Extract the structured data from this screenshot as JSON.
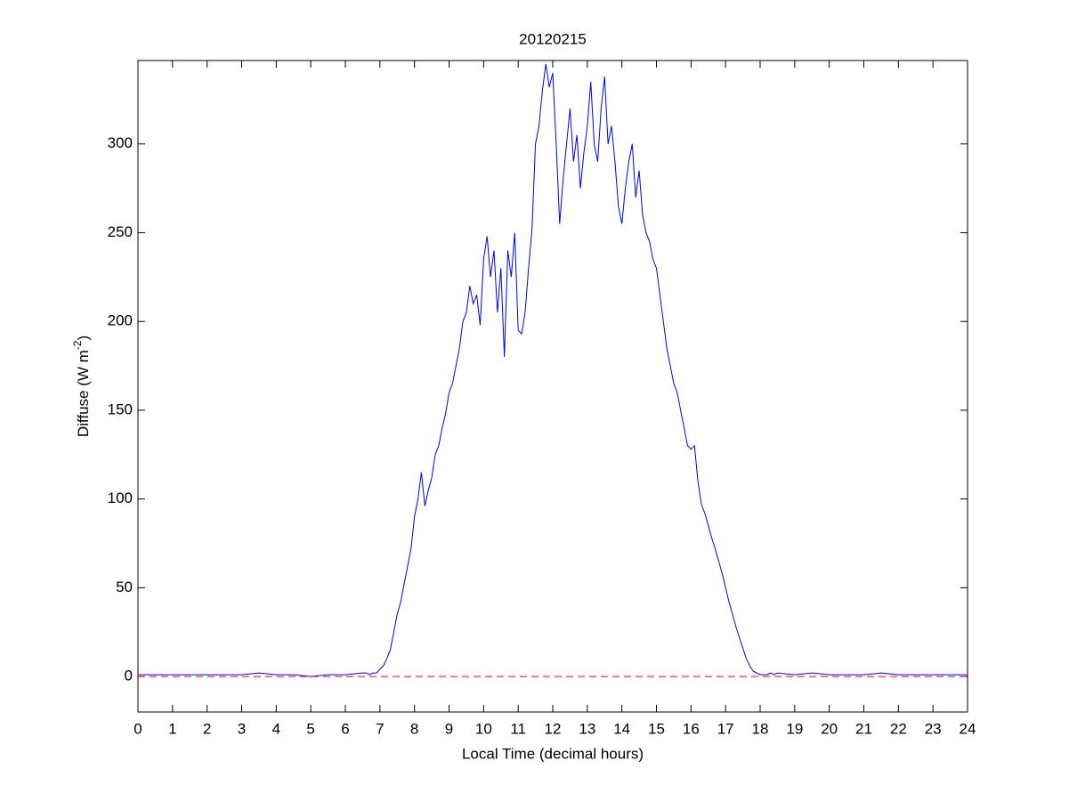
{
  "chart_data": {
    "type": "line",
    "title": "20120215",
    "xlabel": "Local Time (decimal hours)",
    "ylabel": {
      "text": "Diffuse (W m",
      "superscript": "-2",
      "suffix": ")"
    },
    "xlim": [
      0,
      24
    ],
    "ylim": [
      -20,
      347
    ],
    "xticks": [
      0,
      1,
      2,
      3,
      4,
      5,
      6,
      7,
      8,
      9,
      10,
      11,
      12,
      13,
      14,
      15,
      16,
      17,
      18,
      19,
      20,
      21,
      22,
      23,
      24
    ],
    "yticks": [
      0,
      50,
      100,
      150,
      200,
      250,
      300
    ],
    "series": [
      {
        "color": "#0000ff",
        "x": [
          0,
          0.5,
          1,
          1.5,
          2,
          2.5,
          3,
          3.5,
          4,
          4.5,
          5,
          5.5,
          6,
          6.5,
          6.6,
          6.7,
          6.8,
          6.9,
          7.0,
          7.1,
          7.2,
          7.3,
          7.4,
          7.5,
          7.6,
          7.7,
          7.8,
          7.9,
          8.0,
          8.1,
          8.2,
          8.3,
          8.4,
          8.5,
          8.6,
          8.7,
          8.8,
          8.9,
          9.0,
          9.1,
          9.2,
          9.3,
          9.4,
          9.5,
          9.6,
          9.7,
          9.8,
          9.9,
          10.0,
          10.1,
          10.2,
          10.3,
          10.4,
          10.5,
          10.6,
          10.7,
          10.8,
          10.9,
          11.0,
          11.1,
          11.2,
          11.3,
          11.4,
          11.5,
          11.6,
          11.7,
          11.8,
          11.9,
          12.0,
          12.1,
          12.2,
          12.3,
          12.4,
          12.5,
          12.6,
          12.7,
          12.8,
          12.9,
          13.0,
          13.1,
          13.2,
          13.3,
          13.4,
          13.5,
          13.6,
          13.7,
          13.8,
          13.9,
          14.0,
          14.1,
          14.2,
          14.3,
          14.4,
          14.5,
          14.6,
          14.7,
          14.8,
          14.9,
          15.0,
          15.1,
          15.2,
          15.3,
          15.4,
          15.5,
          15.6,
          15.7,
          15.8,
          15.9,
          16.0,
          16.1,
          16.2,
          16.3,
          16.4,
          16.5,
          16.6,
          16.7,
          16.8,
          16.9,
          17.0,
          17.1,
          17.2,
          17.3,
          17.4,
          17.5,
          17.6,
          17.7,
          17.8,
          17.9,
          18.0,
          18.1,
          18.2,
          18.3,
          18.4,
          18.5,
          19,
          19.5,
          20,
          20.5,
          21,
          21.5,
          22,
          22.5,
          23,
          23.5,
          24
        ],
        "values": [
          1,
          1,
          1,
          1,
          1,
          1,
          1,
          2,
          1,
          1,
          0,
          1,
          1,
          2,
          2,
          1,
          2,
          2,
          4,
          6,
          10,
          15,
          25,
          35,
          42,
          52,
          62,
          72,
          90,
          100,
          115,
          96,
          105,
          112,
          125,
          130,
          140,
          148,
          160,
          165,
          175,
          185,
          200,
          205,
          220,
          210,
          215,
          198,
          235,
          248,
          225,
          240,
          205,
          230,
          180,
          240,
          225,
          250,
          195,
          193,
          205,
          230,
          252,
          300,
          310,
          330,
          345,
          332,
          340,
          300,
          255,
          280,
          300,
          320,
          290,
          305,
          275,
          295,
          310,
          335,
          300,
          290,
          320,
          338,
          300,
          310,
          290,
          265,
          255,
          275,
          290,
          300,
          270,
          285,
          260,
          250,
          245,
          235,
          230,
          215,
          200,
          185,
          175,
          165,
          160,
          150,
          140,
          130,
          128,
          130,
          110,
          97,
          92,
          85,
          78,
          72,
          65,
          58,
          50,
          42,
          35,
          28,
          22,
          16,
          10,
          6,
          3,
          2,
          1,
          1,
          1,
          2,
          1,
          2,
          1,
          2,
          1,
          1,
          1,
          2,
          1,
          1,
          1,
          1,
          1
        ]
      },
      {
        "color": "#ff0000",
        "dash": true,
        "x": [
          0,
          24
        ],
        "values": [
          0,
          0
        ]
      }
    ]
  }
}
